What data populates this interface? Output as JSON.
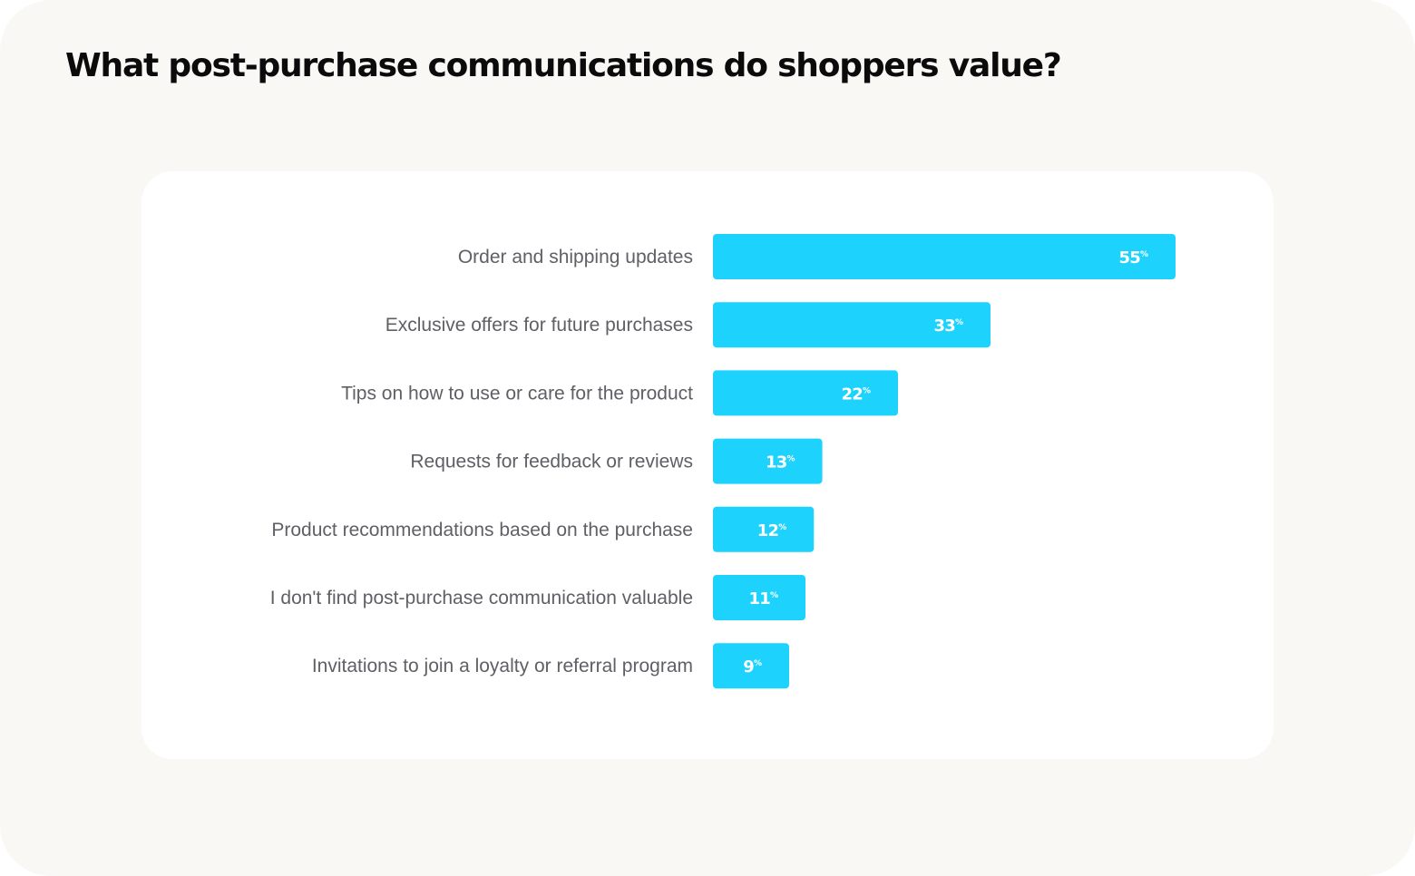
{
  "title": "What post-purchase communications do shoppers value?",
  "colors": {
    "bar": "#1dd2fc",
    "background": "#f9f8f5",
    "card": "#ffffff",
    "label": "#5f6066",
    "value": "#ffffff"
  },
  "chart_data": {
    "type": "bar",
    "orientation": "horizontal",
    "title": "What post-purchase communications do shoppers value?",
    "categories": [
      "Order and shipping updates",
      "Exclusive offers for future purchases",
      "Tips on how to use or care for the product",
      "Requests for feedback or reviews",
      "Product recommendations based on the purchase",
      "I don't find post-purchase communication valuable",
      "Invitations to join a loyalty or referral program"
    ],
    "values": [
      55,
      33,
      22,
      13,
      12,
      11,
      9
    ],
    "value_suffix": "%",
    "xlim": [
      0,
      55
    ],
    "grid": false,
    "legend": "none"
  }
}
